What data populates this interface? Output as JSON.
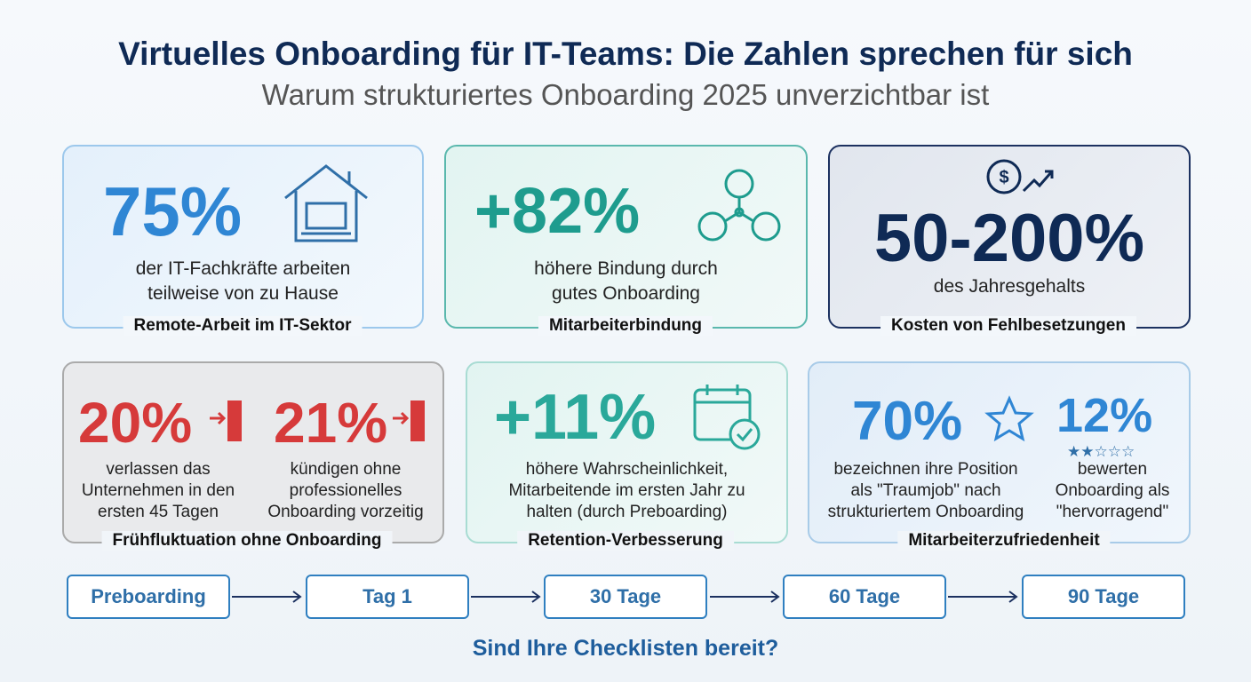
{
  "header": {
    "title": "Virtuelles Onboarding für IT-Teams: Die Zahlen sprechen für sich",
    "subtitle": "Warum strukturiertes Onboarding 2025 unverzichtbar ist"
  },
  "cards": [
    {
      "items": [
        {
          "stat": "75%",
          "lines": [
            "der IT-Fachkräfte arbeiten",
            "teilweise von zu Hause"
          ]
        }
      ],
      "label": "Remote-Arbeit im IT-Sektor"
    },
    {
      "items": [
        {
          "stat": "+82%",
          "lines": [
            "höhere Bindung durch",
            "gutes Onboarding"
          ]
        }
      ],
      "label": "Mitarbeiterbindung"
    },
    {
      "items": [
        {
          "stat": "50-200%",
          "lines": [
            "des Jahresgehalts"
          ]
        }
      ],
      "label": "Kosten von Fehlbesetzungen"
    },
    {
      "items": [
        {
          "stat": "20%",
          "lines": [
            "verlassen das",
            "Unternehmen in den",
            "ersten 45 Tagen"
          ]
        },
        {
          "stat": "21%",
          "lines": [
            "kündigen ohne",
            "professionelles",
            "Onboarding vorzeitig"
          ]
        }
      ],
      "label": "Frühfluktuation ohne Onboarding"
    },
    {
      "items": [
        {
          "stat": "+11%",
          "lines": [
            "höhere Wahrscheinlichkeit,",
            "Mitarbeitende im ersten Jahr zu",
            "halten (durch Preboarding)"
          ]
        }
      ],
      "label": "Retention-Verbesserung"
    },
    {
      "items": [
        {
          "stat": "70%",
          "lines": [
            "bezeichnen ihre Position",
            "als \"Traumjob\" nach",
            "strukturiertem Onboarding"
          ]
        },
        {
          "stat": "12%",
          "lines": [
            "bewerten",
            "Onboarding als",
            "\"hervorragend\""
          ]
        }
      ],
      "label": "Mitarbeiterzufriedenheit"
    }
  ],
  "timeline": {
    "steps": [
      "Preboarding",
      "Tag 1",
      "30 Tage",
      "60 Tage",
      "90 Tage"
    ],
    "question": "Sind Ihre Checklisten bereit?"
  }
}
